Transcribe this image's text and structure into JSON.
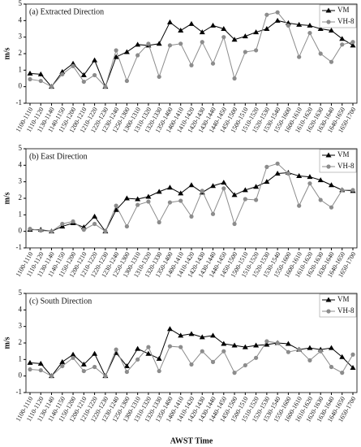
{
  "chart_data": [
    {
      "type": "line",
      "annotation": "(a) Extracted Direction",
      "ylabel": "m/s",
      "categories": [
        "1100-1110",
        "1110-1120",
        "1130-1140",
        "1140-1150",
        "1150-1200",
        "1200-1210",
        "1210-1220",
        "1220-1230",
        "1230-1240",
        "1250-1300",
        "1300-1310",
        "1310-1320",
        "1320-1330",
        "1350-1400",
        "1400-1410",
        "1410-1420",
        "1420-1430",
        "1430-1440",
        "1440-1450",
        "1450-1500",
        "1500-1510",
        "1510-1520",
        "1520-1530",
        "1530-1540",
        "1550-1600",
        "1600-1610",
        "1610-1620",
        "1620-1630",
        "1630-1640",
        "1640-1650",
        "1650-1700"
      ],
      "series": [
        {
          "name": "VM",
          "color": "#000000",
          "marker": "triangle",
          "values": [
            0.8,
            0.75,
            0,
            0.9,
            1.4,
            0.7,
            1.6,
            0,
            1.8,
            2.1,
            2.55,
            2.5,
            2.6,
            3.9,
            3.4,
            3.8,
            3.3,
            3.7,
            3.5,
            2.85,
            3.05,
            3.3,
            3.5,
            4.0,
            3.85,
            3.75,
            3.7,
            3.5,
            3.4,
            2.9,
            2.5
          ]
        },
        {
          "name": "VH-8",
          "color": "#8c8c8c",
          "marker": "circle",
          "values": [
            0.45,
            0.35,
            0,
            0.75,
            1.25,
            0.3,
            0.7,
            0,
            2.2,
            0.35,
            1.9,
            2.6,
            0.6,
            2.5,
            2.6,
            1.3,
            2.7,
            1.4,
            3.0,
            0.5,
            2.1,
            2.2,
            4.35,
            4.5,
            3.7,
            1.8,
            3.25,
            2.0,
            1.5,
            2.55,
            2.7
          ]
        }
      ],
      "ylim": [
        -1,
        5
      ],
      "yticks": [
        -1,
        0,
        1,
        2,
        3,
        4,
        5
      ]
    },
    {
      "type": "line",
      "annotation": "(b) East Direction",
      "ylabel": "m/s",
      "categories": [
        "1100-1110",
        "1110-1120",
        "1130-1140",
        "1140-1150",
        "1150-1200",
        "1200-1210",
        "1210-1220",
        "1220-1230",
        "1230-1240",
        "1250-1300",
        "1300-1310",
        "1310-1320",
        "1320-1330",
        "1350-1400",
        "1400-1410",
        "1410-1420",
        "1420-1430",
        "1430-1440",
        "1440-1450",
        "1450-1500",
        "1500-1510",
        "1510-1520",
        "1520-1530",
        "1530-1540",
        "1550-1600",
        "1600-1610",
        "1610-1620",
        "1620-1630",
        "1630-1640",
        "1640-1650",
        "1650-1700"
      ],
      "series": [
        {
          "name": "VM",
          "color": "#000000",
          "marker": "triangle",
          "values": [
            0.1,
            0.1,
            0,
            0.3,
            0.5,
            0.25,
            0.9,
            0,
            1.3,
            2.0,
            1.95,
            2.1,
            2.4,
            2.65,
            2.3,
            2.8,
            2.35,
            2.75,
            2.95,
            2.2,
            2.5,
            2.7,
            3.0,
            3.5,
            3.55,
            3.35,
            3.3,
            3.1,
            2.8,
            2.5,
            2.45
          ]
        },
        {
          "name": "VH-8",
          "color": "#8c8c8c",
          "marker": "circle",
          "values": [
            0.15,
            0.05,
            0,
            0.45,
            0.6,
            0.1,
            0.45,
            0,
            1.55,
            0.3,
            1.6,
            1.8,
            0.55,
            1.75,
            1.85,
            0.9,
            2.45,
            1.05,
            2.6,
            0.45,
            1.95,
            1.9,
            3.9,
            4.1,
            3.5,
            1.55,
            2.9,
            1.9,
            1.45,
            2.5,
            2.5
          ]
        }
      ],
      "ylim": [
        -1,
        5
      ],
      "yticks": [
        -1,
        0,
        1,
        2,
        3,
        4,
        5
      ]
    },
    {
      "type": "line",
      "annotation": "(c) South Direction",
      "ylabel": "m/s",
      "xlabel": "AWST Time",
      "categories": [
        "1100-1110",
        "1110-1120",
        "1130-1140",
        "1140-1150",
        "1150-1200",
        "1200-1210",
        "1210-1220",
        "1220-1230",
        "1230-1240",
        "1250-1300",
        "1300-1310",
        "1310-1320",
        "1320-1330",
        "1350-1400",
        "1400-1410",
        "1410-1420",
        "1420-1430",
        "1430-1440",
        "1440-1450",
        "1450-1500",
        "1500-1510",
        "1510-1520",
        "1520-1530",
        "1530-1540",
        "1550-1600",
        "1600-1610",
        "1610-1620",
        "1620-1630",
        "1630-1640",
        "1640-1650",
        "1650-1700"
      ],
      "series": [
        {
          "name": "VM",
          "color": "#000000",
          "marker": "triangle",
          "values": [
            0.8,
            0.75,
            0,
            0.85,
            1.3,
            0.7,
            1.35,
            0,
            1.4,
            0.6,
            1.65,
            1.35,
            1.05,
            2.85,
            2.45,
            2.55,
            2.35,
            2.45,
            1.95,
            1.85,
            1.75,
            1.85,
            1.9,
            2.0,
            1.95,
            1.6,
            1.7,
            1.6,
            1.7,
            1.15,
            0.5
          ]
        },
        {
          "name": "VH-8",
          "color": "#8c8c8c",
          "marker": "circle",
          "values": [
            0.4,
            0.35,
            0,
            0.6,
            1.1,
            0.3,
            0.55,
            0,
            1.6,
            0.25,
            1.0,
            1.75,
            0.3,
            1.8,
            1.75,
            0.7,
            1.5,
            0.85,
            1.5,
            0.2,
            0.65,
            1.1,
            2.1,
            2.0,
            1.45,
            1.6,
            0.95,
            1.5,
            0.55,
            0.2,
            1.3
          ]
        }
      ],
      "ylim": [
        -1,
        5
      ],
      "yticks": [
        -1,
        0,
        1,
        2,
        3,
        4,
        5
      ]
    }
  ]
}
